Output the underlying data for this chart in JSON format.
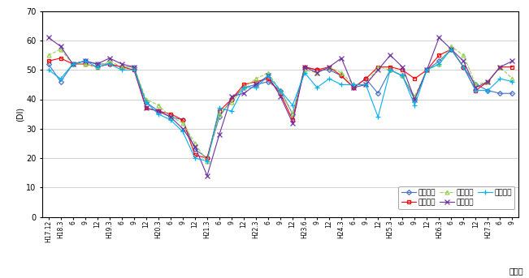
{
  "title": "",
  "ylabel": "(DI)",
  "xlabel": "（月）",
  "ylim": [
    0,
    70
  ],
  "yticks": [
    0,
    10,
    20,
    30,
    40,
    50,
    60,
    70
  ],
  "x_labels": [
    "H17.12",
    "H18.3",
    "6",
    "9",
    "12",
    "H19.3",
    "6",
    "9",
    "12",
    "H20.3",
    "6",
    "9",
    "12",
    "H21.3",
    "6",
    "9",
    "12",
    "H22.3",
    "6",
    "9",
    "12",
    "H23.6",
    "9",
    "12",
    "H24.3",
    "6",
    "9",
    "12",
    "H25.3",
    "6",
    "9",
    "12",
    "H26.3",
    "6",
    "9",
    "12",
    "H27.3",
    "6",
    "9"
  ],
  "series": [
    {
      "name": "県北地域",
      "color": "#4472C4",
      "marker": "D",
      "markersize": 3,
      "linestyle": "-",
      "values": [
        52,
        46,
        52,
        53,
        52,
        52,
        51,
        51,
        39,
        36,
        34,
        33,
        23,
        20,
        34,
        40,
        44,
        45,
        46,
        43,
        35,
        51,
        50,
        50,
        48,
        44,
        47,
        42,
        50,
        48,
        40,
        50,
        53,
        57,
        51,
        45,
        43,
        42,
        42
      ]
    },
    {
      "name": "県央地域",
      "color": "#FF0000",
      "marker": "s",
      "markersize": 3,
      "linestyle": "-",
      "values": [
        53,
        54,
        52,
        52,
        51,
        52,
        51,
        50,
        37,
        36,
        35,
        33,
        21,
        20,
        36,
        40,
        45,
        46,
        47,
        42,
        33,
        51,
        50,
        51,
        48,
        44,
        47,
        51,
        51,
        50,
        47,
        50,
        55,
        57,
        51,
        43,
        46,
        51,
        51
      ]
    },
    {
      "name": "鹿行地域",
      "color": "#92D050",
      "marker": "^",
      "markersize": 3.5,
      "linestyle": "--",
      "values": [
        55,
        57,
        52,
        52,
        51,
        53,
        51,
        51,
        40,
        38,
        34,
        32,
        25,
        19,
        35,
        39,
        44,
        47,
        49,
        43,
        35,
        50,
        49,
        51,
        49,
        45,
        45,
        51,
        50,
        48,
        41,
        50,
        52,
        58,
        55,
        45,
        46,
        51,
        47
      ]
    },
    {
      "name": "県南地域",
      "color": "#7030A0",
      "marker": "x",
      "markersize": 4,
      "linestyle": "-",
      "values": [
        61,
        58,
        52,
        53,
        52,
        54,
        52,
        51,
        37,
        36,
        34,
        30,
        24,
        14,
        28,
        41,
        42,
        45,
        48,
        41,
        32,
        51,
        49,
        51,
        54,
        44,
        45,
        50,
        55,
        51,
        40,
        50,
        61,
        57,
        53,
        44,
        46,
        51,
        53
      ]
    },
    {
      "name": "県西地域",
      "color": "#00B0F0",
      "marker": "+",
      "markersize": 4,
      "linestyle": "-",
      "values": [
        50,
        47,
        52,
        53,
        51,
        52,
        50,
        50,
        39,
        35,
        33,
        29,
        20,
        19,
        37,
        36,
        44,
        44,
        48,
        43,
        38,
        49,
        44,
        47,
        45,
        45,
        45,
        34,
        50,
        48,
        38,
        50,
        52,
        57,
        51,
        43,
        43,
        47,
        46
      ]
    }
  ],
  "figsize": [
    6.51,
    3.43
  ],
  "dpi": 100,
  "grid_color": "#C0C0C0",
  "bg_color": "#FFFFFF"
}
